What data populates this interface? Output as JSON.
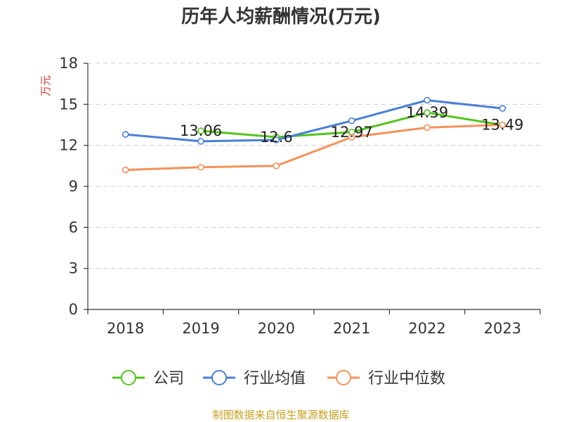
{
  "chart_data": {
    "type": "line",
    "title": "历年人均薪酬情况(万元)",
    "ylabel": "万元",
    "xlabel": "",
    "categories": [
      "2018",
      "2019",
      "2020",
      "2021",
      "2022",
      "2023"
    ],
    "ylim": [
      0,
      18
    ],
    "yticks": [
      0,
      3,
      6,
      9,
      12,
      15,
      18
    ],
    "grid": true,
    "legend_position": "bottom",
    "series": [
      {
        "name": "公司",
        "color": "#52c41a",
        "values": [
          null,
          13.06,
          12.6,
          12.97,
          14.39,
          13.49
        ],
        "labels": [
          "",
          "13.06",
          "12.6",
          "12.97",
          "14.39",
          "13.49"
        ]
      },
      {
        "name": "行业均值",
        "color": "#4a7fd8",
        "values": [
          12.8,
          12.3,
          12.4,
          13.8,
          15.3,
          14.7
        ]
      },
      {
        "name": "行业中位数",
        "color": "#f5925a",
        "values": [
          10.2,
          10.4,
          10.5,
          12.6,
          13.3,
          13.5
        ]
      }
    ]
  },
  "footer": {
    "source": "制图数据来自恒生聚源数据库"
  }
}
